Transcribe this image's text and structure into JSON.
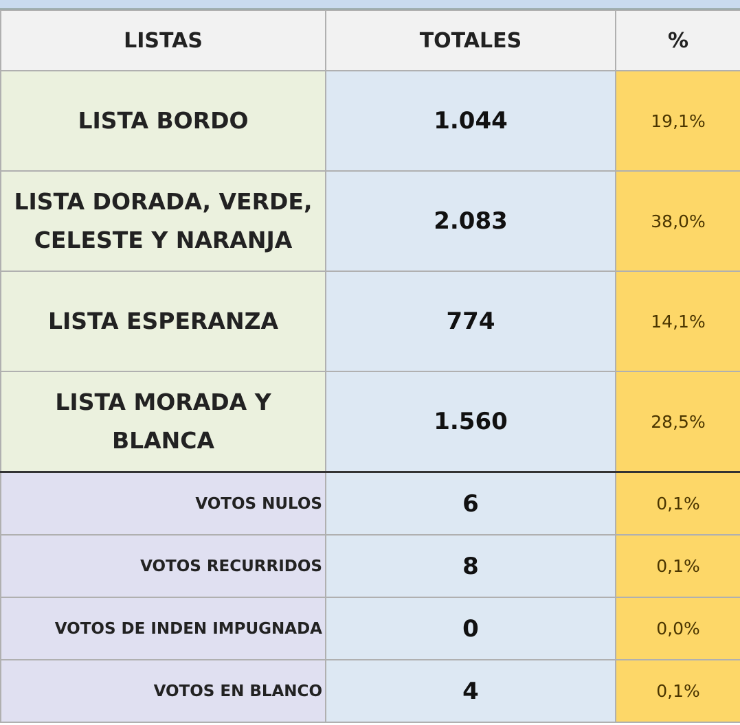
{
  "table": {
    "header": [
      "LISTAS",
      "TOTALES",
      "%"
    ],
    "rows": [
      [
        "LISTA BORDO",
        "1.044",
        "19,1%"
      ],
      [
        "LISTA DORADA, VERDE, CELESTE Y NARANJA",
        "2.083",
        "38,0%"
      ],
      [
        "LISTA ESPERANZA",
        "774",
        "14,1%"
      ],
      [
        "LISTA MORADA Y BLANCA",
        "1.560",
        "28,5%"
      ],
      [
        "VOTOS NULOS",
        "6",
        "0,1%"
      ],
      [
        "VOTOS RECURRIDOS",
        "8",
        "0,1%"
      ],
      [
        "VOTOS DE INDEN IMPUGNADA",
        "0",
        "0,0%"
      ],
      [
        "VOTOS EN BLANCO",
        "4",
        "0,1%"
      ]
    ]
  }
}
